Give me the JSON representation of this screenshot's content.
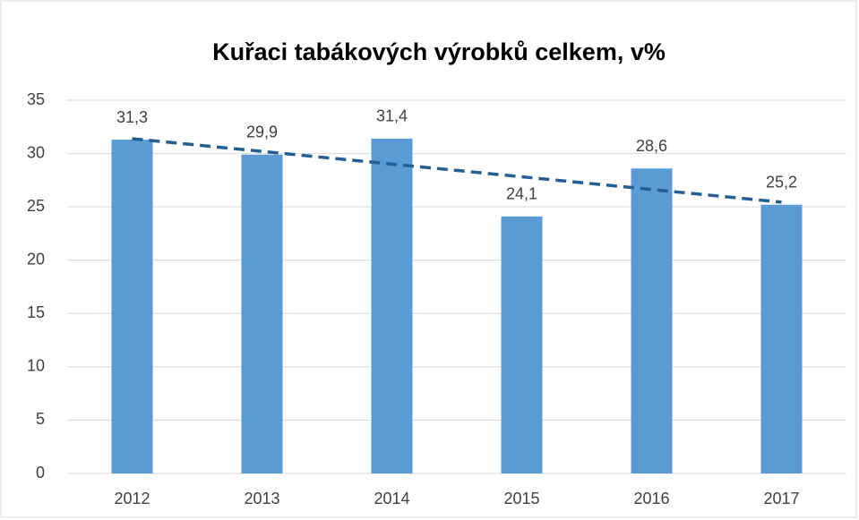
{
  "chart_data": {
    "type": "bar",
    "title": "Kuřaci tabákových výrobků celkem, v%",
    "categories": [
      "2012",
      "2013",
      "2014",
      "2015",
      "2016",
      "2017"
    ],
    "values": [
      31.3,
      29.9,
      31.4,
      24.1,
      28.6,
      25.2
    ],
    "value_labels": [
      "31,3",
      "29,9",
      "31,4",
      "24,1",
      "28,6",
      "25,2"
    ],
    "color": "#5b9bd5",
    "ylim": [
      0,
      35
    ],
    "yticks": [
      0,
      5,
      10,
      15,
      20,
      25,
      30,
      35
    ],
    "grid": true,
    "trendline": "linear",
    "trendline_color": "#255e91"
  }
}
